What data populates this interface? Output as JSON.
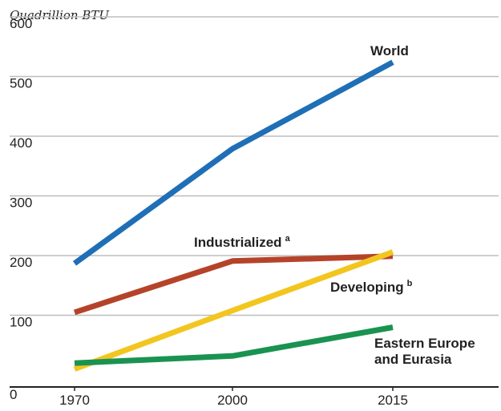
{
  "chart_data": {
    "type": "line",
    "ylabel": "Quadrillion BTU",
    "ylim": [
      0,
      600
    ],
    "yticks": [
      "0",
      "100",
      "200",
      "300",
      "400",
      "500",
      "600"
    ],
    "x": [
      "1970",
      "2000",
      "2015"
    ],
    "grid": true,
    "series": [
      {
        "name": "World",
        "sup": "",
        "values": [
          207,
          399,
          544
        ],
        "color": "#1f6fb7"
      },
      {
        "name": "Industrialized",
        "sup": "a",
        "values": [
          125,
          211,
          219
        ],
        "color": "#b5432a"
      },
      {
        "name": "Developing",
        "sup": "b",
        "values": [
          30,
          128,
          226
        ],
        "color": "#f2c61f"
      },
      {
        "name": "Eastern Europe",
        "name2": "and Eurasia",
        "sup": "",
        "values": [
          40,
          52,
          100
        ],
        "color": "#1a9350"
      }
    ]
  }
}
